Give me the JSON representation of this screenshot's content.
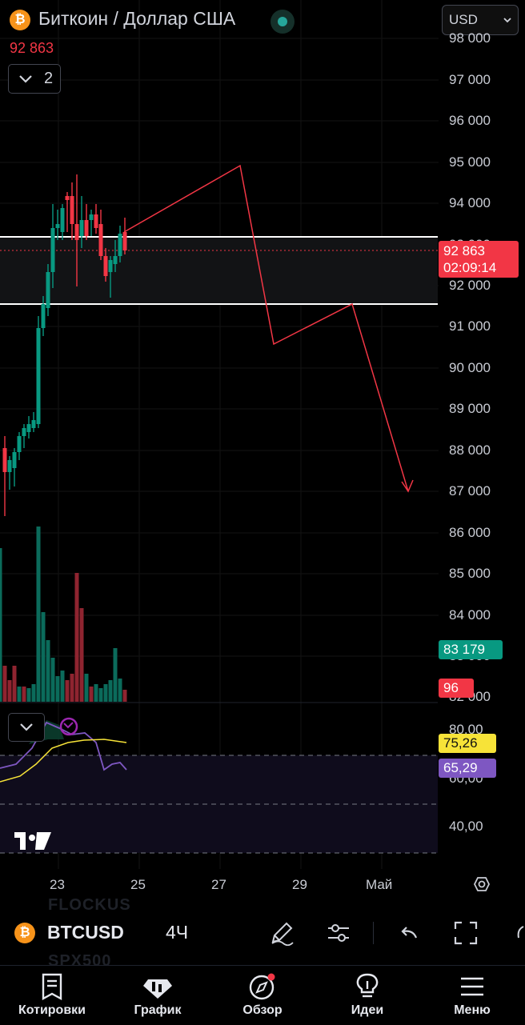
{
  "header": {
    "coin_symbol": "₿",
    "title": "Биткоин / Доллар США",
    "current_price": "92 863",
    "indicator_count": "2",
    "currency": "USD"
  },
  "price_axis": {
    "labels": [
      "98 000",
      "97 000",
      "96 000",
      "95 000",
      "94 000",
      "93 000",
      "92 000",
      "91 000",
      "90 000",
      "89 000",
      "88 000",
      "87 000",
      "86 000",
      "85 000",
      "84 000",
      "83 000",
      "82 000"
    ],
    "last_price_badge": {
      "price": "92 863",
      "countdown": "02:09:14",
      "color": "#f23645"
    },
    "volume_ma_badge": {
      "value": "83 179",
      "color": "#089981"
    },
    "volume_badge": {
      "value": "96",
      "color": "#f23645"
    }
  },
  "rsi_axis": {
    "labels": [
      "80,00",
      "60,00",
      "40,00"
    ],
    "rsi_ma_badge": {
      "value": "75,26",
      "color": "#f7e338"
    },
    "rsi_badge": {
      "value": "65,29",
      "color": "#7e57c2"
    }
  },
  "time_axis": {
    "labels": [
      "23",
      "25",
      "27",
      "29",
      "Май"
    ]
  },
  "colors": {
    "up": "#089981",
    "down": "#f23645",
    "drawing": "#f23645",
    "rsi_line": "#7e57c2",
    "rsi_ma": "#f7e338"
  },
  "toolbar": {
    "coin_symbol": "₿",
    "symbol": "BTCUSD",
    "timeframe": "4Ч",
    "ghost_above": "FLOCKUS",
    "ghost_below": "SPX500",
    "icons": [
      "pencil-icon",
      "settings-sliders-icon",
      "undo-icon",
      "fullscreen-icon"
    ]
  },
  "nav": {
    "items": [
      {
        "label": "Котировки",
        "icon": "watchlist-icon"
      },
      {
        "label": "График",
        "icon": "chart-icon"
      },
      {
        "label": "Обзор",
        "icon": "compass-icon"
      },
      {
        "label": "Идеи",
        "icon": "lightbulb-icon"
      },
      {
        "label": "Меню",
        "icon": "hamburger-icon"
      }
    ]
  }
}
